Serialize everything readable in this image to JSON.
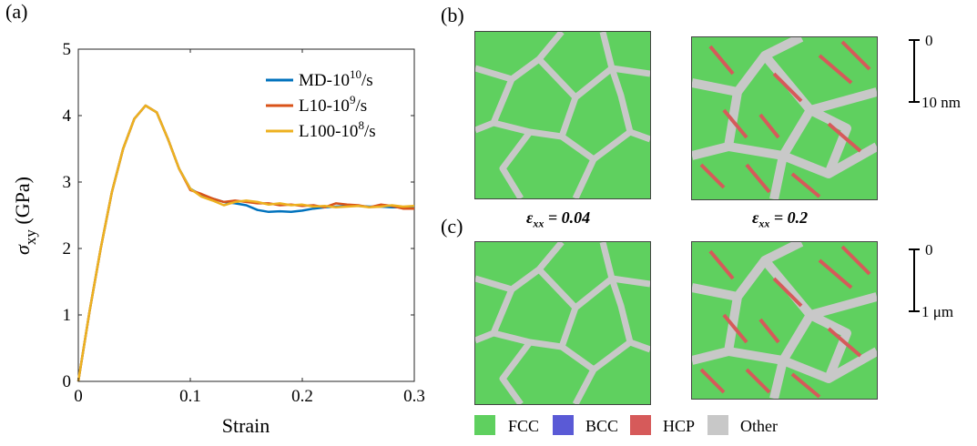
{
  "panel_labels": {
    "a": "(a)",
    "b": "(b)",
    "c": "(c)"
  },
  "chart_data": {
    "type": "line",
    "xlabel": "Strain",
    "ylabel": "σ",
    "ylabel_sub": "xy",
    "ylabel_unit": " (GPa)",
    "xlim": [
      0,
      0.3
    ],
    "ylim": [
      0,
      5
    ],
    "x_ticks": [
      0,
      0.1,
      0.2,
      0.3
    ],
    "x_tick_labels": [
      "0",
      "0.1",
      "0.2",
      "0.3"
    ],
    "y_ticks": [
      0,
      1,
      2,
      3,
      4,
      5
    ],
    "y_tick_labels": [
      "0",
      "1",
      "2",
      "3",
      "4",
      "5"
    ],
    "legend_position": "top-right",
    "series": [
      {
        "name": "MD-10",
        "name_sup": "10",
        "name_suffix": "/s",
        "color": "#0072bd",
        "x": [
          0,
          0.01,
          0.02,
          0.03,
          0.04,
          0.05,
          0.06,
          0.07,
          0.08,
          0.09,
          0.1,
          0.11,
          0.12,
          0.13,
          0.14,
          0.15,
          0.16,
          0.17,
          0.18,
          0.19,
          0.2,
          0.21,
          0.22,
          0.23,
          0.24,
          0.25,
          0.26,
          0.27,
          0.28,
          0.29,
          0.3
        ],
        "y": [
          0,
          1.05,
          2.0,
          2.85,
          3.5,
          3.95,
          4.15,
          4.05,
          3.65,
          3.2,
          2.9,
          2.8,
          2.75,
          2.7,
          2.68,
          2.65,
          2.58,
          2.55,
          2.56,
          2.55,
          2.57,
          2.6,
          2.62,
          2.63,
          2.64,
          2.64,
          2.63,
          2.63,
          2.62,
          2.62,
          2.62
        ]
      },
      {
        "name": "L10-10",
        "name_sup": "9",
        "name_suffix": "/s",
        "color": "#d95319",
        "x": [
          0,
          0.01,
          0.02,
          0.03,
          0.04,
          0.05,
          0.06,
          0.07,
          0.08,
          0.09,
          0.1,
          0.11,
          0.12,
          0.13,
          0.14,
          0.15,
          0.16,
          0.17,
          0.18,
          0.19,
          0.2,
          0.21,
          0.22,
          0.23,
          0.24,
          0.25,
          0.26,
          0.27,
          0.28,
          0.29,
          0.3
        ],
        "y": [
          0,
          1.05,
          2.0,
          2.85,
          3.5,
          3.95,
          4.15,
          4.05,
          3.65,
          3.2,
          2.88,
          2.82,
          2.75,
          2.7,
          2.72,
          2.7,
          2.68,
          2.68,
          2.65,
          2.66,
          2.64,
          2.65,
          2.62,
          2.68,
          2.66,
          2.65,
          2.62,
          2.66,
          2.64,
          2.6,
          2.6
        ]
      },
      {
        "name": "L100-10",
        "name_sup": "8",
        "name_suffix": "/s",
        "color": "#edb120",
        "x": [
          0,
          0.01,
          0.02,
          0.03,
          0.04,
          0.05,
          0.06,
          0.07,
          0.08,
          0.09,
          0.1,
          0.11,
          0.12,
          0.13,
          0.14,
          0.15,
          0.16,
          0.17,
          0.18,
          0.19,
          0.2,
          0.21,
          0.22,
          0.23,
          0.24,
          0.25,
          0.26,
          0.27,
          0.28,
          0.29,
          0.3
        ],
        "y": [
          0,
          1.05,
          2.0,
          2.85,
          3.5,
          3.95,
          4.15,
          4.05,
          3.65,
          3.2,
          2.9,
          2.78,
          2.72,
          2.65,
          2.7,
          2.72,
          2.7,
          2.66,
          2.68,
          2.65,
          2.66,
          2.63,
          2.64,
          2.62,
          2.63,
          2.64,
          2.62,
          2.63,
          2.65,
          2.63,
          2.64
        ]
      }
    ]
  },
  "snapshots": {
    "strain_symbol": "ε",
    "strain_sub": "xx",
    "left_value": " = 0.04",
    "right_value": " = 0.2",
    "scale_top": {
      "zero": "0",
      "length": "10 nm"
    },
    "scale_bottom": {
      "zero": "0",
      "length": "1 μm"
    }
  },
  "structure_legend": [
    {
      "label": "FCC",
      "color": "#5fd05f"
    },
    {
      "label": "BCC",
      "color": "#5a5ad6"
    },
    {
      "label": "HCP",
      "color": "#d65a5a"
    },
    {
      "label": "Other",
      "color": "#c8c8c8"
    }
  ]
}
